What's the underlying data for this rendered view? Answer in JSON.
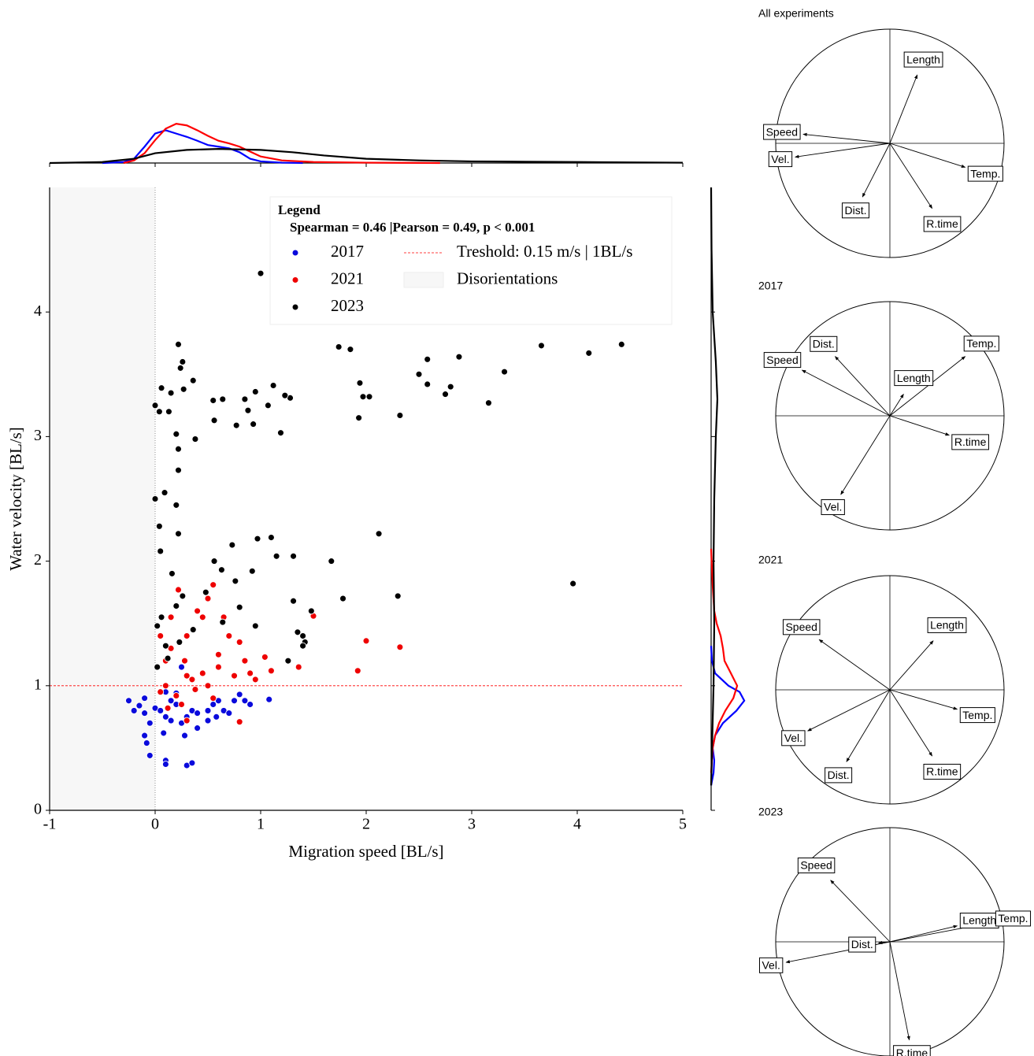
{
  "chart_data": [
    {
      "type": "scatter",
      "xlabel": "Migration speed [BL/s]",
      "ylabel": "Water velocity [BL/s]",
      "xlim": [
        -1,
        5
      ],
      "ylim": [
        0,
        5
      ],
      "xticks": [
        -1,
        0,
        1,
        2,
        3,
        4,
        5
      ],
      "yticks": [
        0,
        1,
        2,
        3,
        4
      ],
      "legend_title": "Legend",
      "legend_subtitle": "Spearman = 0.46 |Pearson = 0.49, p < 0.001",
      "legend_loc": "upper right",
      "threshold": {
        "label": "Treshold: 0.15 m/s | 1BL/s",
        "value": 1,
        "color": "#ff0000"
      },
      "shade": {
        "label": "Disorientations",
        "xlim": [
          -1,
          0
        ],
        "color": "#f7f7f7"
      },
      "series": [
        {
          "name": "2017",
          "color": "#0a0adc",
          "x": [
            -0.25,
            -0.2,
            -0.15,
            -0.1,
            -0.1,
            -0.05,
            -0.08,
            -0.05,
            -0.1,
            0.0,
            0.05,
            0.1,
            0.1,
            0.15,
            0.2,
            0.25,
            0.28,
            0.3,
            0.35,
            0.4,
            0.5,
            0.55,
            0.6,
            0.65,
            0.7,
            0.75,
            0.8,
            0.85,
            0.9,
            1.08,
            0.1,
            0.1,
            0.3,
            0.35,
            0.25,
            0.08,
            0.15,
            0.4,
            0.2,
            0.5,
            0.58
          ],
          "values": [
            0.88,
            0.8,
            0.84,
            0.78,
            0.9,
            0.7,
            0.54,
            0.44,
            0.6,
            0.82,
            0.8,
            0.75,
            0.95,
            0.88,
            0.85,
            0.7,
            0.6,
            0.75,
            0.8,
            0.78,
            0.8,
            0.85,
            0.88,
            0.8,
            0.78,
            0.88,
            0.93,
            0.88,
            0.85,
            0.89,
            0.4,
            0.37,
            0.36,
            0.38,
            1.15,
            0.62,
            0.72,
            0.66,
            0.94,
            0.72,
            0.75
          ]
        },
        {
          "name": "2021",
          "color": "#ee0000",
          "x": [
            2.0,
            2.32,
            1.92,
            1.5,
            1.36,
            1.1,
            1.04,
            0.8,
            0.3,
            0.22,
            0.55,
            0.4,
            0.45,
            0.7,
            0.8,
            0.6,
            0.9,
            0.95,
            0.75,
            0.3,
            0.1,
            0.05,
            0.2,
            0.35,
            0.45,
            0.1,
            0.15,
            0.05,
            0.3,
            0.5,
            0.55,
            0.6,
            0.25,
            0.15,
            0.65,
            0.85,
            0.12,
            0.5,
            0.28,
            0.38
          ],
          "values": [
            1.36,
            1.31,
            1.12,
            1.56,
            1.15,
            1.12,
            1.23,
            0.71,
            0.72,
            1.77,
            1.81,
            1.6,
            1.55,
            1.4,
            1.35,
            1.25,
            1.1,
            1.05,
            1.08,
            1.08,
            1.0,
            0.95,
            0.92,
            1.05,
            1.1,
            1.2,
            1.3,
            1.4,
            1.4,
            1.0,
            0.9,
            1.15,
            0.85,
            1.55,
            1.55,
            1.2,
            0.82,
            1.7,
            1.2,
            0.97
          ]
        },
        {
          "name": "2023",
          "color": "#000000",
          "x": [
            1.0,
            1.74,
            1.85,
            3.66,
            4.11,
            4.42,
            0.22,
            0.26,
            0.24,
            0.36,
            0.06,
            0.15,
            0.0,
            0.04,
            0.13,
            0.27,
            0.55,
            0.64,
            0.56,
            0.85,
            0.95,
            0.88,
            0.77,
            0.93,
            1.07,
            1.12,
            1.19,
            1.28,
            1.23,
            1.94,
            1.97,
            2.03,
            1.93,
            2.32,
            2.5,
            2.58,
            2.58,
            2.75,
            2.8,
            2.88,
            3.16,
            3.31,
            0.2,
            0.38,
            0.22,
            0.22,
            0.09,
            0.0,
            0.2,
            0.04,
            0.22,
            0.05,
            2.12,
            0.16,
            0.56,
            0.73,
            0.97,
            1.1,
            1.15,
            1.31,
            1.67,
            0.63,
            0.76,
            0.92,
            1.31,
            1.78,
            2.3,
            3.96,
            0.48,
            0.26,
            0.02,
            0.1,
            0.23,
            0.36,
            1.35,
            1.42,
            1.48,
            1.4,
            1.4,
            1.26,
            0.02,
            0.06,
            0.95,
            0.64,
            0.8,
            0.12,
            0.2
          ],
          "values": [
            4.31,
            3.72,
            3.7,
            3.73,
            3.67,
            3.74,
            3.74,
            3.6,
            3.55,
            3.45,
            3.39,
            3.35,
            3.25,
            3.2,
            3.2,
            3.38,
            3.29,
            3.3,
            3.13,
            3.3,
            3.36,
            3.21,
            3.09,
            3.1,
            3.25,
            3.41,
            3.03,
            3.31,
            3.33,
            3.43,
            3.32,
            3.32,
            3.15,
            3.17,
            3.5,
            3.62,
            3.42,
            3.34,
            3.4,
            3.64,
            3.27,
            3.52,
            3.02,
            2.98,
            2.9,
            2.73,
            2.55,
            2.5,
            2.45,
            2.28,
            2.22,
            2.08,
            2.22,
            1.9,
            2.0,
            2.13,
            2.18,
            2.19,
            2.04,
            2.04,
            2.0,
            1.93,
            1.84,
            1.92,
            1.68,
            1.7,
            1.72,
            1.82,
            1.75,
            1.72,
            1.48,
            1.32,
            1.35,
            1.45,
            1.43,
            1.35,
            1.6,
            1.4,
            1.32,
            1.2,
            1.15,
            1.55,
            1.48,
            1.51,
            1.63,
            1.22,
            1.64
          ]
        }
      ]
    },
    {
      "type": "kde",
      "orient": "top",
      "ylim": [
        0,
        1.3
      ],
      "series": [
        {
          "name": "2017",
          "color": "#0000ff",
          "x": [
            -0.5,
            -0.3,
            -0.2,
            -0.1,
            0,
            0.1,
            0.2,
            0.3,
            0.4,
            0.5,
            0.6,
            0.7,
            0.8,
            0.9,
            1.0,
            1.2,
            1.4
          ],
          "values": [
            0,
            0.03,
            0.13,
            0.5,
            0.9,
            1.0,
            0.9,
            0.8,
            0.68,
            0.55,
            0.5,
            0.45,
            0.33,
            0.13,
            0.05,
            0.01,
            0
          ]
        },
        {
          "name": "2021",
          "color": "#ff0000",
          "x": [
            -0.3,
            -0.2,
            -0.1,
            0,
            0.1,
            0.2,
            0.3,
            0.4,
            0.5,
            0.6,
            0.7,
            0.8,
            0.9,
            1.0,
            1.2,
            1.5,
            2.0,
            2.7
          ],
          "values": [
            0,
            0.08,
            0.3,
            0.7,
            1.05,
            1.2,
            1.15,
            1.0,
            0.83,
            0.68,
            0.6,
            0.5,
            0.35,
            0.2,
            0.08,
            0.03,
            0.01,
            0
          ]
        },
        {
          "name": "2023",
          "color": "#000000",
          "x": [
            -1,
            -0.5,
            -0.2,
            0,
            0.3,
            0.6,
            1.0,
            1.3,
            1.6,
            2.0,
            2.5,
            3,
            3.5,
            4,
            4.5,
            5
          ],
          "values": [
            0,
            0.03,
            0.13,
            0.3,
            0.4,
            0.43,
            0.4,
            0.33,
            0.23,
            0.13,
            0.08,
            0.05,
            0.04,
            0.03,
            0.02,
            0.01
          ]
        }
      ]
    },
    {
      "type": "kde",
      "orient": "right",
      "ylim": [
        0,
        2.6
      ],
      "series": [
        {
          "name": "2017",
          "color": "#0000ff",
          "x": [
            0.2,
            0.3,
            0.4,
            0.5,
            0.6,
            0.7,
            0.8,
            0.88,
            0.95,
            1.0,
            1.1,
            1.2,
            1.32
          ],
          "values": [
            0,
            0.17,
            0.22,
            0.11,
            0.28,
            0.83,
            1.78,
            2.33,
            2.0,
            1.22,
            0.28,
            0.06,
            0
          ]
        },
        {
          "name": "2021",
          "color": "#ff0000",
          "x": [
            0.3,
            0.5,
            0.6,
            0.7,
            0.8,
            0.9,
            1.0,
            1.1,
            1.2,
            1.3,
            1.4,
            1.5,
            1.6,
            1.8,
            2.1
          ],
          "values": [
            0,
            0.11,
            0.28,
            0.56,
            1.0,
            1.56,
            1.83,
            1.39,
            0.94,
            0.83,
            0.67,
            0.39,
            0.22,
            0.11,
            0
          ]
        },
        {
          "name": "2023",
          "color": "#000000",
          "x": [
            0.2,
            1.0,
            1.5,
            2.0,
            2.5,
            3.0,
            3.3,
            3.6,
            4.0,
            4.5,
            5.0
          ],
          "values": [
            0,
            0.17,
            0.22,
            0.17,
            0.22,
            0.33,
            0.44,
            0.33,
            0.11,
            0.03,
            0
          ]
        }
      ]
    },
    {
      "type": "biplot",
      "title": "All experiments",
      "xlim": [
        -1,
        1
      ],
      "ylim": [
        -1,
        1
      ],
      "categories": [
        "Length",
        "Speed",
        "Vel.",
        "Temp.",
        "Dist.",
        "R.time"
      ],
      "x": [
        0.24,
        -0.76,
        -0.83,
        0.66,
        -0.24,
        0.37
      ],
      "values": [
        0.6,
        0.08,
        -0.12,
        -0.21,
        -0.47,
        -0.57
      ]
    },
    {
      "type": "biplot",
      "title": "2017",
      "xlim": [
        -1,
        1
      ],
      "ylim": [
        -1,
        1
      ],
      "categories": [
        "Dist.",
        "Speed",
        "Temp.",
        "Length",
        "R.time",
        "Vel."
      ],
      "x": [
        -0.48,
        -0.77,
        0.66,
        0.12,
        0.52,
        -0.43
      ],
      "values": [
        0.52,
        0.4,
        0.52,
        0.19,
        -0.17,
        -0.69
      ]
    },
    {
      "type": "biplot",
      "title": "2021",
      "xlim": [
        -1,
        1
      ],
      "ylim": [
        -1,
        1
      ],
      "categories": [
        "Length",
        "Speed",
        "Temp.",
        "Vel.",
        "Dist.",
        "R.time"
      ],
      "x": [
        0.38,
        -0.62,
        0.59,
        -0.72,
        -0.38,
        0.37
      ],
      "values": [
        0.43,
        0.44,
        -0.17,
        -0.36,
        -0.63,
        -0.58
      ]
    },
    {
      "type": "biplot",
      "title": "2023",
      "xlim": [
        -1,
        1
      ],
      "ylim": [
        -1,
        1
      ],
      "categories": [
        "Speed",
        "Length",
        "Temp.",
        "Dist.",
        "Vel.",
        "R.time"
      ],
      "x": [
        -0.52,
        0.59,
        0.9,
        -0.1,
        -0.91,
        0.17
      ],
      "values": [
        0.54,
        0.14,
        0.17,
        -0.01,
        -0.18,
        -0.86
      ]
    }
  ]
}
